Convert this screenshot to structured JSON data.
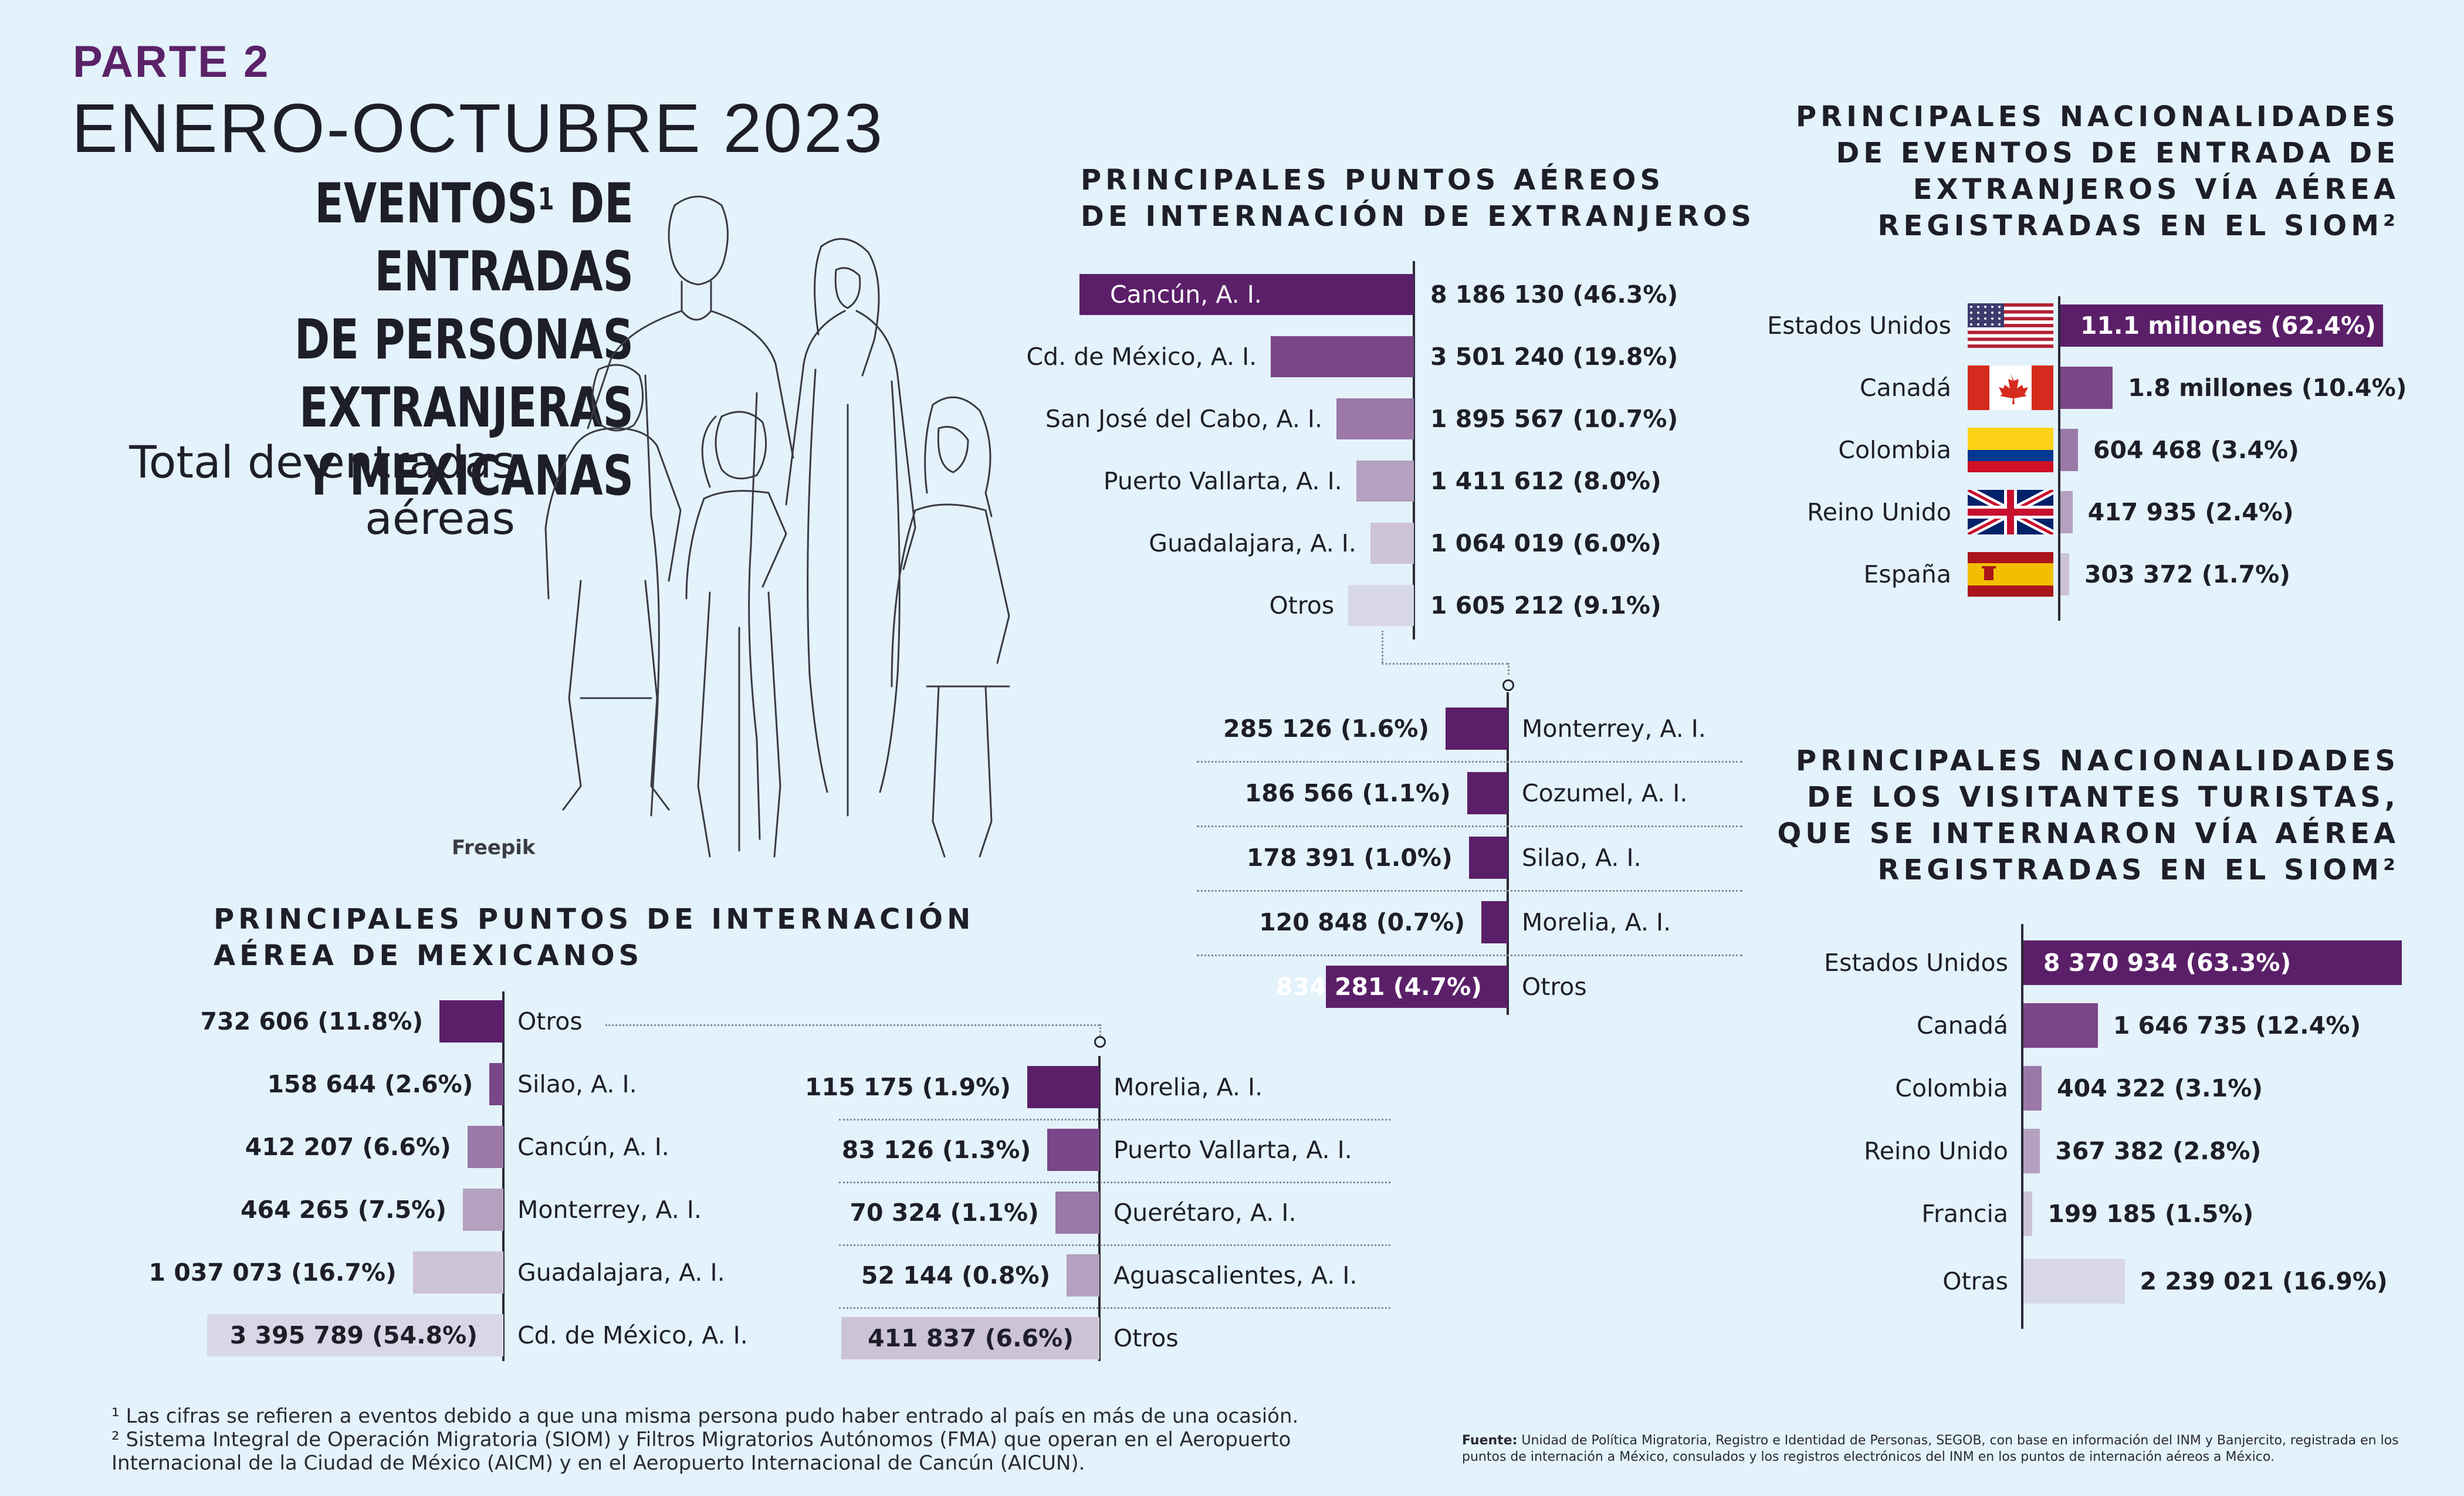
{
  "header": {
    "parte": "PARTE 2",
    "period": "ENERO-OCTUBRE 2023",
    "title_lines": [
      "EVENTOS",
      "DE PERSONAS",
      "EXTRANJERAS",
      "Y MEXICANAS"
    ],
    "title_first_suffix": " DE ENTRADAS",
    "title_footnote_mark": "1",
    "subtitle_lines": [
      "Total de entradas",
      "aéreas"
    ],
    "image_credit": "Freepik"
  },
  "colors": {
    "dark": "#5b1f69",
    "mid": "#7a4687",
    "light": "#9b78a7",
    "lighter": "#b4a0bf",
    "pale": "#cdc3d6",
    "palest": "#d7d7e6",
    "background": "#e3f2fb"
  },
  "chart_data": [
    {
      "type": "bar",
      "title": "PRINCIPALES PUNTOS AÉREOS DE INTERNACIÓN DE EXTRANJEROS",
      "title_lines": [
        "PRINCIPALES PUNTOS AÉREOS",
        "DE INTERNACIÓN DE EXTRANJEROS"
      ],
      "categories": [
        "Cancún, A. I.",
        "Cd. de México, A. I.",
        "San José del Cabo, A. I.",
        "Puerto Vallarta, A. I.",
        "Guadalajara, A. I.",
        "Otros"
      ],
      "values": [
        8186130,
        3501240,
        1895567,
        1411612,
        1064019,
        1605212
      ],
      "labels": [
        "8 186 130  (46.3%)",
        "3 501 240  (19.8%)",
        "1 895 567  (10.7%)",
        "1 411 612  (8.0%)",
        "1 064 019  (6.0%)",
        "1 605 212  (9.1%)"
      ]
    },
    {
      "type": "bar",
      "title": "",
      "categories": [
        "Monterrey, A. I.",
        "Cozumel, A. I.",
        "Silao, A. I.",
        "Morelia, A. I.",
        "Otros"
      ],
      "values": [
        285126,
        186566,
        178391,
        120848,
        834281
      ],
      "labels": [
        "285 126 (1.6%)",
        "186 566 (1.1%)",
        "178 391  (1.0%)",
        "120 848  (0.7%)",
        "834 281  (4.7%)"
      ]
    },
    {
      "type": "bar",
      "title": "PRINCIPALES NACIONALIDADES DE EVENTOS DE ENTRADA DE EXTRANJEROS VÍA AÉREA REGISTRADAS EN EL SIOM",
      "title_lines": [
        "PRINCIPALES NACIONALIDADES",
        "DE EVENTOS DE ENTRADA DE",
        "EXTRANJEROS VÍA AÉREA",
        "REGISTRADAS EN EL SIOM²"
      ],
      "categories": [
        "Estados Unidos",
        "Canadá",
        "Colombia",
        "Reino Unido",
        "España"
      ],
      "values": [
        11100000,
        1800000,
        604468,
        417935,
        303372
      ],
      "labels": [
        "11.1 millones (62.4%)",
        "1.8 millones (10.4%)",
        "604 468 (3.4%)",
        "417 935 (2.4%)",
        "303 372  (1.7%)"
      ],
      "flags": [
        "usa-flag-icon",
        "canada-flag-icon",
        "colombia-flag-icon",
        "uk-flag-icon",
        "spain-flag-icon"
      ]
    },
    {
      "type": "bar",
      "title": "PRINCIPALES NACIONALIDADES DE LOS VISITANTES TURISTAS, QUE SE INTERNARON VÍA AÉREA REGISTRADAS EN EL SIOM",
      "title_lines": [
        "PRINCIPALES NACIONALIDADES",
        "DE LOS VISITANTES TURISTAS,",
        "QUE SE INTERNARON VÍA AÉREA",
        "REGISTRADAS EN EL SIOM²"
      ],
      "categories": [
        "Estados Unidos",
        "Canadá",
        "Colombia",
        "Reino Unido",
        "Francia",
        "Otras"
      ],
      "values": [
        8370934,
        1646735,
        404322,
        367382,
        199185,
        2239021
      ],
      "labels": [
        "8 370 934 (63.3%)",
        "1 646 735 (12.4%)",
        "404 322 (3.1%)",
        "367 382  (2.8%)",
        "199 185  (1.5%)",
        "2 239 021  (16.9%)"
      ]
    },
    {
      "type": "bar",
      "title": "PRINCIPALES PUNTOS DE INTERNACIÓN AÉREA DE MEXICANOS",
      "title_lines": [
        "PRINCIPALES PUNTOS DE INTERNACIÓN",
        "AÉREA DE MEXICANOS"
      ],
      "categories": [
        "Otros",
        "Silao, A. I.",
        "Cancún, A. I.",
        "Monterrey, A. I.",
        "Guadalajara, A. I.",
        "Cd. de México, A. I."
      ],
      "values": [
        732606,
        158644,
        412207,
        464265,
        1037073,
        3395789
      ],
      "labels": [
        "732 606  (11.8%)",
        "158 644  (2.6%)",
        "412 207  (6.6%)",
        "464 265  (7.5%)",
        "1 037 073  (16.7%)",
        "3 395 789  (54.8%)"
      ]
    },
    {
      "type": "bar",
      "title": "",
      "categories": [
        "Morelia, A. I.",
        "Puerto Vallarta, A. I.",
        "Querétaro, A. I.",
        "Aguascalientes, A. I.",
        "Otros"
      ],
      "values": [
        115175,
        83126,
        70324,
        52144,
        411837
      ],
      "labels": [
        "115 175  (1.9%)",
        "83 126  (1.3%)",
        "70 324  (1.1%)",
        "52 144  (0.8%)",
        "411 837  (6.6%)"
      ]
    }
  ],
  "footnotes": [
    "¹ Las cifras se refieren a eventos debido a que una misma persona pudo haber entrado al país en más de una ocasión.",
    "² Sistema Integral de Operación Migratoria (SIOM) y Filtros Migratorios Autónomos (FMA) que operan en el Aeropuerto",
    "Internacional de la Ciudad de México (AICM) y en el Aeropuerto Internacional de Cancún (AICUN)."
  ],
  "source": {
    "label": "Fuente:",
    "text": "Unidad de Política Migratoria, Registro e Identidad de Personas, SEGOB, con base en información del INM y Banjercito, registrada en los puntos de internación a México, consulados y los registros electrónicos del INM en los puntos de internación aéreos a México."
  }
}
